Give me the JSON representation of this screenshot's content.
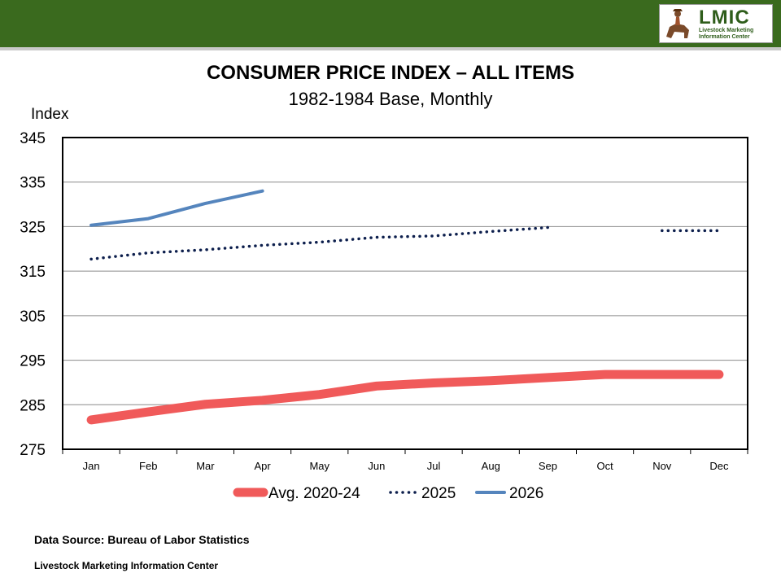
{
  "header": {
    "bar_color": "#3a6a1e",
    "logo": {
      "title": "LMIC",
      "subtitle": "Livestock Marketing Information Center",
      "icon": "cowboy-on-horse-icon"
    }
  },
  "chart_data": {
    "type": "line",
    "title": "CONSUMER PRICE INDEX – ALL ITEMS",
    "subtitle": "1982-1984 Base, Monthly",
    "ylabel": "Index",
    "xlabel": "",
    "ylim": [
      275,
      345
    ],
    "yticks": [
      275,
      285,
      295,
      305,
      315,
      325,
      335,
      345
    ],
    "categories": [
      "Jan",
      "Feb",
      "Mar",
      "Apr",
      "May",
      "Jun",
      "Jul",
      "Aug",
      "Sep",
      "Oct",
      "Nov",
      "Dec"
    ],
    "grid": "horizontal",
    "legend_position": "bottom",
    "series": [
      {
        "name": "Avg. 2020-24",
        "color": "#f05a5a",
        "style": "solid-thick",
        "values": [
          281.6,
          283.4,
          285.1,
          286.0,
          287.3,
          289.2,
          289.9,
          290.4,
          291.1,
          291.8,
          291.8,
          291.8
        ]
      },
      {
        "name": "2025",
        "color": "#0d1f4d",
        "style": "dotted",
        "values": [
          317.7,
          319.1,
          319.8,
          320.8,
          321.5,
          322.6,
          322.9,
          323.9,
          324.8,
          null,
          324.1,
          324.1
        ]
      },
      {
        "name": "2026",
        "color": "#5585bd",
        "style": "solid",
        "values": [
          325.3,
          326.8,
          330.2,
          333.0,
          null,
          null,
          null,
          null,
          null,
          null,
          null,
          null
        ]
      }
    ]
  },
  "footer": {
    "source": "Data Source:  Bureau of Labor Statistics",
    "org": "Livestock Marketing Information Center"
  }
}
